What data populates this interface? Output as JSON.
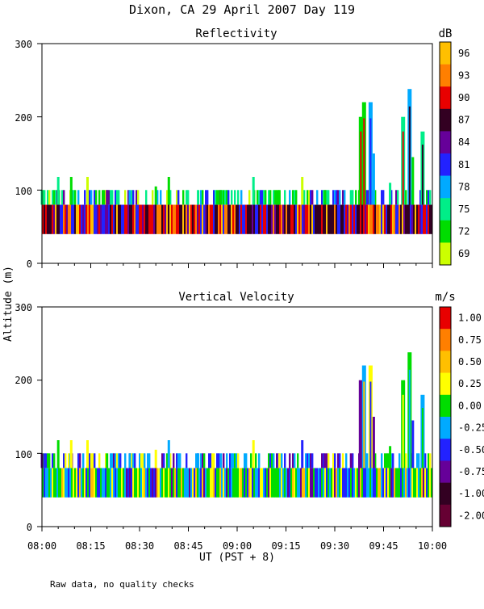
{
  "title": "Dixon, CA 29 April 2007  Day 119",
  "y_axis_label": "Altitude (m)",
  "x_axis_label": "UT  (PST + 8)",
  "note": "Raw data, no quality checks",
  "x_ticks": [
    "08:00",
    "08:15",
    "08:30",
    "08:45",
    "09:00",
    "09:15",
    "09:30",
    "09:45",
    "10:00"
  ],
  "y_ticks": [
    "0",
    "100",
    "200",
    "300"
  ],
  "chart_data": [
    {
      "type": "heatmap",
      "title": "Reflectivity",
      "xlabel": "UT  (PST + 8)",
      "ylabel": "Altitude (m)",
      "xlim": [
        "08:00",
        "10:00"
      ],
      "ylim": [
        0,
        300
      ],
      "colorbar": {
        "unit": "dB",
        "labels": [
          "96",
          "93",
          "90",
          "87",
          "84",
          "81",
          "78",
          "75",
          "72",
          "69"
        ],
        "colors": [
          "#ffbf00",
          "#ff7f00",
          "#e80000",
          "#330022",
          "#660099",
          "#2222ff",
          "#00aaff",
          "#00ee88",
          "#00dd00",
          "#ccff00"
        ]
      },
      "background_layer": {
        "from_time": "08:00",
        "to_time": "10:00",
        "alt_min": 40,
        "alt_max": 80
      },
      "echo_columns": [
        {
          "time": "08:00",
          "top": 100
        },
        {
          "time": "08:05",
          "top": 118
        },
        {
          "time": "08:09",
          "top": 118
        },
        {
          "time": "08:14",
          "top": 118
        },
        {
          "time": "08:20",
          "top": 100
        },
        {
          "time": "08:27",
          "top": 100
        },
        {
          "time": "08:35",
          "top": 105
        },
        {
          "time": "08:39",
          "top": 118
        },
        {
          "time": "08:48",
          "top": 100
        },
        {
          "time": "08:55",
          "top": 100
        },
        {
          "time": "09:05",
          "top": 118
        },
        {
          "time": "09:13",
          "top": 100
        },
        {
          "time": "09:20",
          "top": 118
        },
        {
          "time": "09:27",
          "top": 100
        },
        {
          "time": "09:35",
          "top": 100
        },
        {
          "time": "09:38",
          "top": 200
        },
        {
          "time": "09:39",
          "top": 220
        },
        {
          "time": "09:41",
          "top": 220
        },
        {
          "time": "09:42",
          "top": 150
        },
        {
          "time": "09:47",
          "top": 110
        },
        {
          "time": "09:51",
          "top": 200
        },
        {
          "time": "09:53",
          "top": 238
        },
        {
          "time": "09:54",
          "top": 145
        },
        {
          "time": "09:57",
          "top": 180
        }
      ]
    },
    {
      "type": "heatmap",
      "title": "Vertical Velocity",
      "xlabel": "UT  (PST + 8)",
      "ylabel": "Altitude (m)",
      "xlim": [
        "08:00",
        "10:00"
      ],
      "ylim": [
        0,
        300
      ],
      "colorbar": {
        "unit": "m/s",
        "labels": [
          "1.00",
          "0.75",
          "0.50",
          "0.25",
          "0.00",
          "-0.25",
          "-0.50",
          "-0.75",
          "-1.00",
          "-2.00"
        ],
        "colors": [
          "#e80000",
          "#ff7f00",
          "#ffbf00",
          "#ffff00",
          "#00dd00",
          "#00aaff",
          "#2222ff",
          "#660099",
          "#330022",
          "#660033"
        ]
      },
      "background_layer": {
        "from_time": "08:00",
        "to_time": "10:00",
        "alt_min": 40,
        "alt_max": 80
      },
      "echo_columns": [
        {
          "time": "08:00",
          "top": 100
        },
        {
          "time": "08:05",
          "top": 118
        },
        {
          "time": "08:09",
          "top": 118
        },
        {
          "time": "08:14",
          "top": 118
        },
        {
          "time": "08:20",
          "top": 100
        },
        {
          "time": "08:27",
          "top": 100
        },
        {
          "time": "08:35",
          "top": 105
        },
        {
          "time": "08:39",
          "top": 118
        },
        {
          "time": "08:48",
          "top": 100
        },
        {
          "time": "08:55",
          "top": 100
        },
        {
          "time": "09:05",
          "top": 118
        },
        {
          "time": "09:13",
          "top": 100
        },
        {
          "time": "09:20",
          "top": 118
        },
        {
          "time": "09:27",
          "top": 100
        },
        {
          "time": "09:35",
          "top": 100
        },
        {
          "time": "09:38",
          "top": 200
        },
        {
          "time": "09:39",
          "top": 220
        },
        {
          "time": "09:41",
          "top": 220
        },
        {
          "time": "09:42",
          "top": 150
        },
        {
          "time": "09:47",
          "top": 110
        },
        {
          "time": "09:51",
          "top": 200
        },
        {
          "time": "09:53",
          "top": 238
        },
        {
          "time": "09:54",
          "top": 145
        },
        {
          "time": "09:57",
          "top": 180
        }
      ]
    }
  ]
}
